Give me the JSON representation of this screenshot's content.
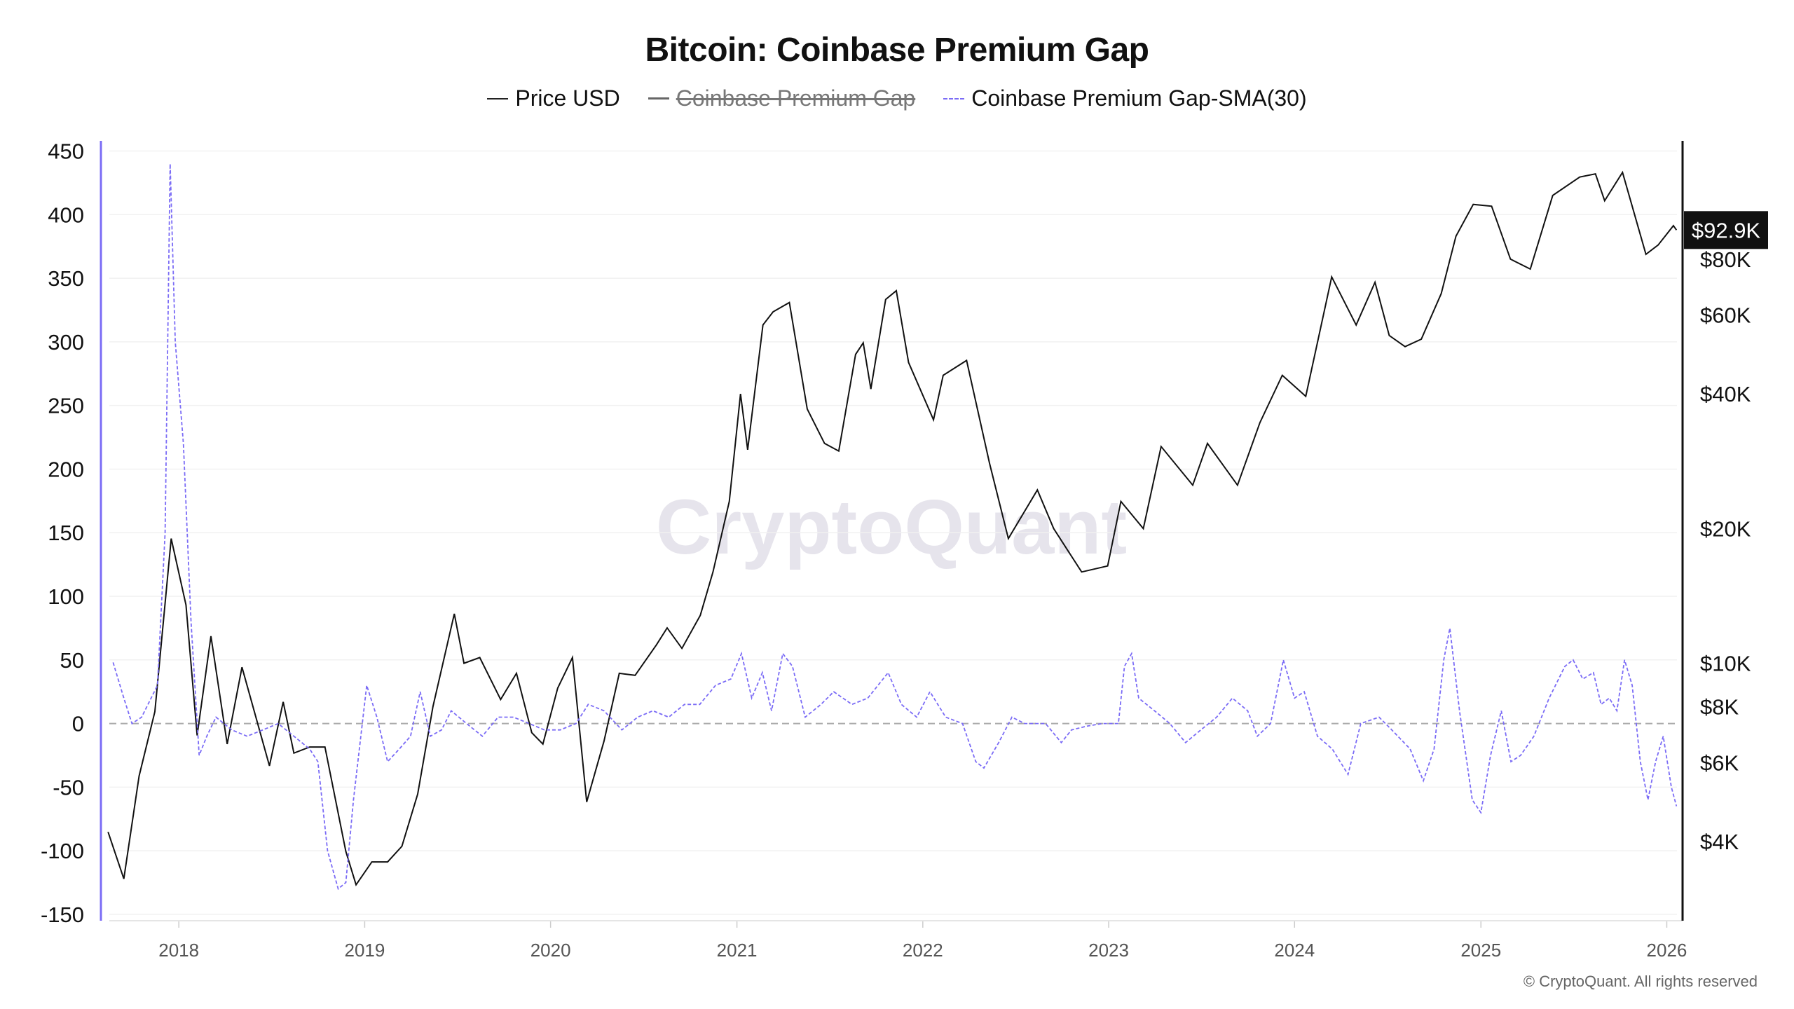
{
  "chart_data": {
    "type": "line",
    "title": "Bitcoin: Coinbase Premium Gap",
    "legend": [
      {
        "name": "Price USD",
        "color": "#222222",
        "style": "solid",
        "hidden": false
      },
      {
        "name": "Coinbase Premium Gap",
        "color": "#666666",
        "style": "solid",
        "hidden": true
      },
      {
        "name": "Coinbase Premium Gap-SMA(30)",
        "color": "#7b6cf6",
        "style": "dashed",
        "hidden": false
      }
    ],
    "legend_placement": "top-center",
    "watermark": "CryptoQuant",
    "footer": "© CryptoQuant. All rights reserved",
    "x_ticks": [
      "2018",
      "2019",
      "2020",
      "2021",
      "2022",
      "2023",
      "2024",
      "2025",
      "2026"
    ],
    "xlim": [
      "2017-08-01",
      "2026-02-01"
    ],
    "y_left": {
      "ticks": [
        450,
        400,
        350,
        300,
        250,
        200,
        150,
        100,
        50,
        0,
        -50,
        -100,
        -150
      ],
      "ylim": [
        -155,
        458
      ],
      "color": "#7b6cf6"
    },
    "y_right": {
      "scale": "log",
      "ticks": [
        "$4K",
        "$6K",
        "$8K",
        "$10K",
        "$20K",
        "$40K",
        "$60K",
        "$80K"
      ],
      "tick_values": [
        4000,
        6000,
        8000,
        10000,
        20000,
        40000,
        60000,
        80000
      ],
      "ylim": [
        2660,
        147000
      ],
      "current_label": "$92.9K",
      "current_value": 92900
    },
    "grid": true,
    "zero_line": "dashed",
    "series": [
      {
        "name": "Price USD",
        "axis": "right",
        "points": [
          [
            "2017-08-15",
            4200
          ],
          [
            "2017-09-15",
            3300
          ],
          [
            "2017-10-15",
            5600
          ],
          [
            "2017-11-15",
            7800
          ],
          [
            "2017-12-17",
            19000
          ],
          [
            "2018-01-15",
            13500
          ],
          [
            "2018-02-06",
            6900
          ],
          [
            "2018-03-05",
            11500
          ],
          [
            "2018-04-06",
            6600
          ],
          [
            "2018-05-05",
            9800
          ],
          [
            "2018-06-28",
            5900
          ],
          [
            "2018-07-25",
            8200
          ],
          [
            "2018-08-15",
            6300
          ],
          [
            "2018-09-15",
            6500
          ],
          [
            "2018-10-15",
            6500
          ],
          [
            "2018-11-25",
            3800
          ],
          [
            "2018-12-15",
            3200
          ],
          [
            "2019-01-15",
            3600
          ],
          [
            "2019-02-15",
            3600
          ],
          [
            "2019-03-15",
            3900
          ],
          [
            "2019-04-15",
            5100
          ],
          [
            "2019-05-15",
            8000
          ],
          [
            "2019-06-26",
            12900
          ],
          [
            "2019-07-15",
            10000
          ],
          [
            "2019-08-15",
            10300
          ],
          [
            "2019-09-25",
            8300
          ],
          [
            "2019-10-26",
            9500
          ],
          [
            "2019-11-25",
            7000
          ],
          [
            "2019-12-17",
            6600
          ],
          [
            "2020-01-15",
            8800
          ],
          [
            "2020-02-13",
            10300
          ],
          [
            "2020-03-12",
            4900
          ],
          [
            "2020-04-15",
            6700
          ],
          [
            "2020-05-15",
            9500
          ],
          [
            "2020-06-15",
            9400
          ],
          [
            "2020-07-27",
            11000
          ],
          [
            "2020-08-17",
            12000
          ],
          [
            "2020-09-15",
            10800
          ],
          [
            "2020-10-21",
            12800
          ],
          [
            "2020-11-15",
            16000
          ],
          [
            "2020-12-17",
            23000
          ],
          [
            "2021-01-08",
            40000
          ],
          [
            "2021-01-22",
            30000
          ],
          [
            "2021-02-21",
            57000
          ],
          [
            "2021-03-13",
            61000
          ],
          [
            "2021-04-14",
            64000
          ],
          [
            "2021-05-19",
            37000
          ],
          [
            "2021-06-22",
            31000
          ],
          [
            "2021-07-20",
            29800
          ],
          [
            "2021-08-22",
            49000
          ],
          [
            "2021-09-06",
            52000
          ],
          [
            "2021-09-21",
            41000
          ],
          [
            "2021-10-20",
            65000
          ],
          [
            "2021-11-10",
            68000
          ],
          [
            "2021-12-04",
            47000
          ],
          [
            "2022-01-22",
            35000
          ],
          [
            "2022-02-10",
            44000
          ],
          [
            "2022-03-28",
            47500
          ],
          [
            "2022-05-12",
            28000
          ],
          [
            "2022-06-18",
            19000
          ],
          [
            "2022-08-14",
            24400
          ],
          [
            "2022-09-15",
            20000
          ],
          [
            "2022-11-09",
            16000
          ],
          [
            "2022-12-30",
            16500
          ],
          [
            "2023-01-25",
            23000
          ],
          [
            "2023-03-10",
            20000
          ],
          [
            "2023-04-14",
            30500
          ],
          [
            "2023-06-15",
            25000
          ],
          [
            "2023-07-14",
            31000
          ],
          [
            "2023-09-11",
            25000
          ],
          [
            "2023-10-25",
            34500
          ],
          [
            "2023-12-08",
            44000
          ],
          [
            "2024-01-23",
            39500
          ],
          [
            "2024-03-14",
            73000
          ],
          [
            "2024-05-01",
            57000
          ],
          [
            "2024-06-07",
            71000
          ],
          [
            "2024-07-05",
            54000
          ],
          [
            "2024-08-05",
            51000
          ],
          [
            "2024-09-06",
            53000
          ],
          [
            "2024-10-15",
            67000
          ],
          [
            "2024-11-13",
            90000
          ],
          [
            "2024-12-17",
            106000
          ],
          [
            "2025-01-22",
            105000
          ],
          [
            "2025-02-28",
            80000
          ],
          [
            "2025-04-08",
            76000
          ],
          [
            "2025-05-22",
            111000
          ],
          [
            "2025-07-14",
            122000
          ],
          [
            "2025-08-14",
            124000
          ],
          [
            "2025-09-01",
            108000
          ],
          [
            "2025-10-06",
            125000
          ],
          [
            "2025-11-21",
            82000
          ],
          [
            "2025-12-15",
            86000
          ],
          [
            "2026-01-14",
            95000
          ],
          [
            "2026-01-20",
            92900
          ]
        ]
      },
      {
        "name": "Coinbase Premium Gap-SMA(30)",
        "axis": "left",
        "points": [
          [
            "2017-08-25",
            48
          ],
          [
            "2017-09-15",
            20
          ],
          [
            "2017-10-01",
            0
          ],
          [
            "2017-10-20",
            5
          ],
          [
            "2017-11-20",
            30
          ],
          [
            "2017-12-05",
            150
          ],
          [
            "2017-12-15",
            440
          ],
          [
            "2017-12-25",
            300
          ],
          [
            "2018-01-10",
            220
          ],
          [
            "2018-01-25",
            80
          ],
          [
            "2018-02-10",
            -25
          ],
          [
            "2018-02-25",
            -10
          ],
          [
            "2018-03-15",
            5
          ],
          [
            "2018-04-15",
            -5
          ],
          [
            "2018-05-15",
            -10
          ],
          [
            "2018-06-15",
            -5
          ],
          [
            "2018-07-15",
            0
          ],
          [
            "2018-08-15",
            -10
          ],
          [
            "2018-09-15",
            -20
          ],
          [
            "2018-10-01",
            -30
          ],
          [
            "2018-10-20",
            -100
          ],
          [
            "2018-11-10",
            -130
          ],
          [
            "2018-11-25",
            -125
          ],
          [
            "2018-12-10",
            -60
          ],
          [
            "2019-01-05",
            30
          ],
          [
            "2019-01-25",
            5
          ],
          [
            "2019-02-15",
            -30
          ],
          [
            "2019-03-10",
            -20
          ],
          [
            "2019-04-01",
            -10
          ],
          [
            "2019-04-20",
            25
          ],
          [
            "2019-05-10",
            -10
          ],
          [
            "2019-06-01",
            -5
          ],
          [
            "2019-06-20",
            10
          ],
          [
            "2019-07-20",
            0
          ],
          [
            "2019-08-20",
            -10
          ],
          [
            "2019-09-20",
            5
          ],
          [
            "2019-10-20",
            5
          ],
          [
            "2019-11-20",
            0
          ],
          [
            "2019-12-20",
            -5
          ],
          [
            "2020-01-20",
            -5
          ],
          [
            "2020-02-20",
            0
          ],
          [
            "2020-03-15",
            15
          ],
          [
            "2020-04-15",
            10
          ],
          [
            "2020-05-20",
            -5
          ],
          [
            "2020-06-20",
            5
          ],
          [
            "2020-07-20",
            10
          ],
          [
            "2020-08-20",
            5
          ],
          [
            "2020-09-20",
            15
          ],
          [
            "2020-10-20",
            15
          ],
          [
            "2020-11-20",
            30
          ],
          [
            "2020-12-20",
            35
          ],
          [
            "2021-01-10",
            55
          ],
          [
            "2021-01-30",
            20
          ],
          [
            "2021-02-20",
            40
          ],
          [
            "2021-03-10",
            10
          ],
          [
            "2021-04-01",
            55
          ],
          [
            "2021-04-20",
            45
          ],
          [
            "2021-05-15",
            5
          ],
          [
            "2021-06-15",
            15
          ],
          [
            "2021-07-10",
            25
          ],
          [
            "2021-08-15",
            15
          ],
          [
            "2021-09-15",
            20
          ],
          [
            "2021-10-25",
            40
          ],
          [
            "2021-11-20",
            15
          ],
          [
            "2021-12-20",
            5
          ],
          [
            "2022-01-15",
            25
          ],
          [
            "2022-02-15",
            5
          ],
          [
            "2022-03-20",
            0
          ],
          [
            "2022-04-15",
            -30
          ],
          [
            "2022-05-01",
            -35
          ],
          [
            "2022-05-30",
            -15
          ],
          [
            "2022-06-25",
            5
          ],
          [
            "2022-07-20",
            0
          ],
          [
            "2022-08-30",
            0
          ],
          [
            "2022-09-30",
            -15
          ],
          [
            "2022-10-20",
            -5
          ],
          [
            "2022-11-20",
            -2
          ],
          [
            "2022-12-20",
            0
          ],
          [
            "2023-01-20",
            0
          ],
          [
            "2023-02-01",
            45
          ],
          [
            "2023-02-15",
            55
          ],
          [
            "2023-03-01",
            20
          ],
          [
            "2023-04-01",
            10
          ],
          [
            "2023-05-01",
            0
          ],
          [
            "2023-06-01",
            -15
          ],
          [
            "2023-07-01",
            -5
          ],
          [
            "2023-08-01",
            5
          ],
          [
            "2023-09-01",
            20
          ],
          [
            "2023-10-01",
            10
          ],
          [
            "2023-10-20",
            -10
          ],
          [
            "2023-11-15",
            0
          ],
          [
            "2023-12-10",
            50
          ],
          [
            "2024-01-01",
            20
          ],
          [
            "2024-01-20",
            25
          ],
          [
            "2024-02-15",
            -10
          ],
          [
            "2024-03-15",
            -20
          ],
          [
            "2024-04-15",
            -40
          ],
          [
            "2024-05-10",
            0
          ],
          [
            "2024-06-15",
            5
          ],
          [
            "2024-07-10",
            -5
          ],
          [
            "2024-08-15",
            -20
          ],
          [
            "2024-09-10",
            -45
          ],
          [
            "2024-10-01",
            -20
          ],
          [
            "2024-10-20",
            50
          ],
          [
            "2024-11-01",
            75
          ],
          [
            "2024-11-20",
            10
          ],
          [
            "2024-12-15",
            -60
          ],
          [
            "2025-01-01",
            -70
          ],
          [
            "2025-01-20",
            -25
          ],
          [
            "2025-02-10",
            10
          ],
          [
            "2025-03-01",
            -30
          ],
          [
            "2025-03-20",
            -25
          ],
          [
            "2025-04-15",
            -10
          ],
          [
            "2025-05-15",
            20
          ],
          [
            "2025-06-15",
            45
          ],
          [
            "2025-07-01",
            50
          ],
          [
            "2025-07-20",
            35
          ],
          [
            "2025-08-10",
            40
          ],
          [
            "2025-08-25",
            15
          ],
          [
            "2025-09-10",
            20
          ],
          [
            "2025-09-25",
            10
          ],
          [
            "2025-10-10",
            50
          ],
          [
            "2025-10-25",
            30
          ],
          [
            "2025-11-10",
            -30
          ],
          [
            "2025-11-25",
            -60
          ],
          [
            "2025-12-10",
            -30
          ],
          [
            "2025-12-25",
            -10
          ],
          [
            "2026-01-10",
            -50
          ],
          [
            "2026-01-20",
            -65
          ]
        ]
      }
    ]
  }
}
